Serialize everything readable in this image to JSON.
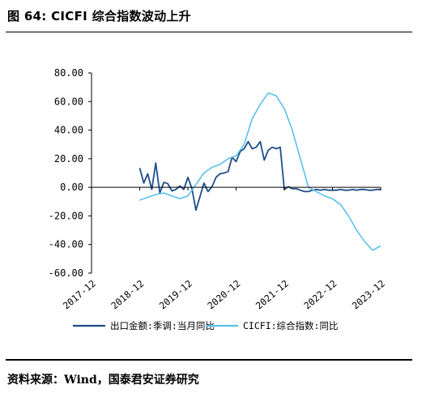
{
  "figure_title": "图 64: CICFI 综合指数波动上升",
  "source_text": "资料来源：Wind，国泰君安证券研究",
  "colors": {
    "export_series": "#1F4E89",
    "cicfi_series": "#5BC0EB",
    "axis": "#000000"
  },
  "chart_data": {
    "type": "line",
    "title": "",
    "xlabel": "",
    "ylabel": "",
    "ylim": [
      -60,
      80
    ],
    "xlim": [
      "2017-12",
      "2023-12"
    ],
    "y_ticks": [
      "80.00",
      "60.00",
      "40.00",
      "20.00",
      "0.00",
      "-20.00",
      "-40.00",
      "-60.00"
    ],
    "x_ticks": [
      "2017-12",
      "2018-12",
      "2019-12",
      "2020-12",
      "2021-12",
      "2022-12",
      "2023-12"
    ],
    "legend_position": "bottom",
    "series": [
      {
        "name": "出口金额:季调:当月同比",
        "x": [
          "2018-12",
          "2019-01",
          "2019-02",
          "2019-03",
          "2019-04",
          "2019-05",
          "2019-06",
          "2019-07",
          "2019-08",
          "2019-09",
          "2019-10",
          "2019-11",
          "2019-12",
          "2020-01",
          "2020-02",
          "2020-03",
          "2020-04",
          "2020-05",
          "2020-06",
          "2020-07",
          "2020-08",
          "2020-09",
          "2020-10",
          "2020-11",
          "2020-12",
          "2021-01",
          "2021-02",
          "2021-03",
          "2021-04",
          "2021-05",
          "2021-06",
          "2021-07",
          "2021-08",
          "2021-09",
          "2021-10",
          "2021-11",
          "2021-12",
          "2022-01",
          "2022-02",
          "2022-03",
          "2022-04",
          "2022-05",
          "2022-06",
          "2022-07",
          "2022-08",
          "2022-09",
          "2022-10",
          "2022-11",
          "2022-12",
          "2023-01",
          "2023-02",
          "2023-03",
          "2023-04",
          "2023-05",
          "2023-06",
          "2023-07",
          "2023-08",
          "2023-09",
          "2023-10",
          "2023-11",
          "2023-12"
        ],
        "values": [
          13.5,
          3,
          9.5,
          -1.5,
          17,
          -4,
          3.5,
          2.5,
          -2.5,
          -1.5,
          1,
          -1.5,
          7,
          -1,
          -16,
          -6.5,
          3,
          -3,
          0.5,
          7,
          9.5,
          10,
          11,
          21,
          18,
          25,
          27,
          32,
          27,
          28,
          32,
          19,
          26,
          28,
          27,
          28,
          -1.5,
          0.5,
          -1,
          -1,
          -2,
          -3,
          -3,
          -2,
          -1.5,
          -2,
          -1.5,
          -2,
          -2,
          -2,
          -1.5,
          -2,
          -2,
          -1.5,
          -2,
          -1.5,
          -1.5,
          -2,
          -2,
          -1.5,
          -1.5
        ]
      },
      {
        "name": "CICFI:综合指数:同比",
        "x": [
          "2018-12",
          "2019-02",
          "2019-04",
          "2019-06",
          "2019-08",
          "2019-10",
          "2019-12",
          "2020-02",
          "2020-04",
          "2020-06",
          "2020-08",
          "2020-10",
          "2020-12",
          "2021-02",
          "2021-04",
          "2021-06",
          "2021-08",
          "2021-10",
          "2021-12",
          "2022-02",
          "2022-04",
          "2022-06",
          "2022-08",
          "2022-10",
          "2022-12",
          "2023-02",
          "2023-04",
          "2023-06",
          "2023-08",
          "2023-10",
          "2023-12"
        ],
        "values": [
          -9,
          -7,
          -5,
          -4,
          -6,
          -8,
          -6,
          2,
          10,
          14,
          16,
          20,
          22,
          30,
          48,
          58,
          66,
          64,
          55,
          40,
          20,
          0,
          -3,
          -6,
          -8,
          -12,
          -20,
          -30,
          -38,
          -44,
          -41
        ]
      }
    ]
  }
}
